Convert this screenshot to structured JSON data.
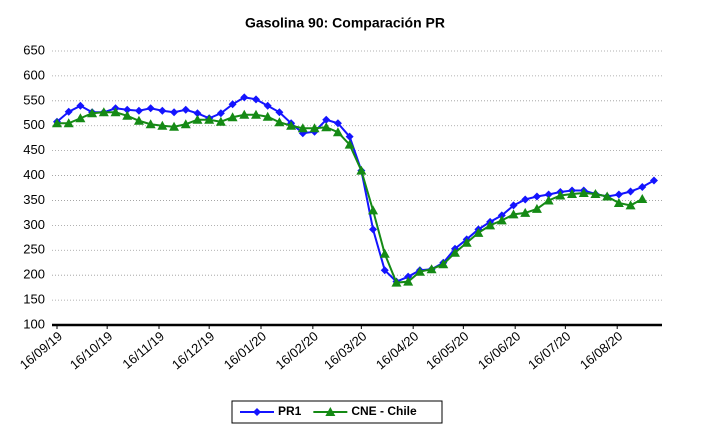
{
  "chart_data": {
    "type": "line",
    "title": "Gasolina 90: Comparación PR",
    "x": [
      "2019-09-16",
      "2019-09-23",
      "2019-09-30",
      "2019-10-07",
      "2019-10-14",
      "2019-10-21",
      "2019-10-28",
      "2019-11-04",
      "2019-11-11",
      "2019-11-18",
      "2019-11-25",
      "2019-12-02",
      "2019-12-09",
      "2019-12-16",
      "2019-12-23",
      "2019-12-30",
      "2020-01-06",
      "2020-01-13",
      "2020-01-20",
      "2020-01-27",
      "2020-02-03",
      "2020-02-10",
      "2020-02-17",
      "2020-02-24",
      "2020-03-02",
      "2020-03-09",
      "2020-03-16",
      "2020-03-23",
      "2020-03-30",
      "2020-04-06",
      "2020-04-13",
      "2020-04-20",
      "2020-04-27",
      "2020-05-04",
      "2020-05-11",
      "2020-05-18",
      "2020-05-25",
      "2020-06-01",
      "2020-06-08",
      "2020-06-15",
      "2020-06-22",
      "2020-06-29",
      "2020-07-06",
      "2020-07-13",
      "2020-07-20",
      "2020-07-27",
      "2020-08-03",
      "2020-08-10",
      "2020-08-17",
      "2020-08-24",
      "2020-08-31",
      "2020-09-07"
    ],
    "series": [
      {
        "name": "PR1",
        "color": "#1414ff",
        "marker": "diamond",
        "values": [
          508,
          528,
          540,
          527,
          527,
          535,
          532,
          530,
          535,
          530,
          527,
          532,
          525,
          515,
          525,
          543,
          557,
          553,
          540,
          527,
          505,
          485,
          488,
          512,
          505,
          478,
          410,
          292,
          210,
          187,
          197,
          210,
          212,
          225,
          253,
          272,
          292,
          307,
          320,
          340,
          352,
          358,
          362,
          367,
          370,
          370,
          363,
          358,
          362,
          368,
          377,
          390
        ]
      },
      {
        "name": "CNE - Chile",
        "color": "#158a15",
        "marker": "triangle",
        "values": [
          505,
          505,
          515,
          525,
          527,
          527,
          520,
          510,
          503,
          500,
          498,
          503,
          512,
          512,
          508,
          517,
          522,
          522,
          518,
          507,
          500,
          495,
          495,
          497,
          487,
          462,
          410,
          330,
          243,
          185,
          187,
          207,
          212,
          222,
          245,
          265,
          285,
          300,
          310,
          322,
          325,
          333,
          350,
          360,
          363,
          365,
          363,
          358,
          345,
          340,
          353,
          null
        ]
      }
    ],
    "xlim": [
      "2019-09-16",
      "2020-09-10"
    ],
    "xticks": [
      {
        "value": "2019-09-16",
        "label": "16/09/19"
      },
      {
        "value": "2019-10-16",
        "label": "16/10/19"
      },
      {
        "value": "2019-11-16",
        "label": "16/11/19"
      },
      {
        "value": "2019-12-16",
        "label": "16/12/19"
      },
      {
        "value": "2020-01-16",
        "label": "16/01/20"
      },
      {
        "value": "2020-02-16",
        "label": "16/02/20"
      },
      {
        "value": "2020-03-16",
        "label": "16/03/20"
      },
      {
        "value": "2020-04-16",
        "label": "16/04/20"
      },
      {
        "value": "2020-05-16",
        "label": "16/05/20"
      },
      {
        "value": "2020-06-16",
        "label": "16/06/20"
      },
      {
        "value": "2020-07-16",
        "label": "16/07/20"
      },
      {
        "value": "2020-08-16",
        "label": "16/08/20"
      }
    ],
    "ylim": [
      100,
      650
    ],
    "yticks": [
      100,
      150,
      200,
      250,
      300,
      350,
      400,
      450,
      500,
      550,
      600,
      650
    ],
    "grid": true,
    "legend": "bottom"
  }
}
